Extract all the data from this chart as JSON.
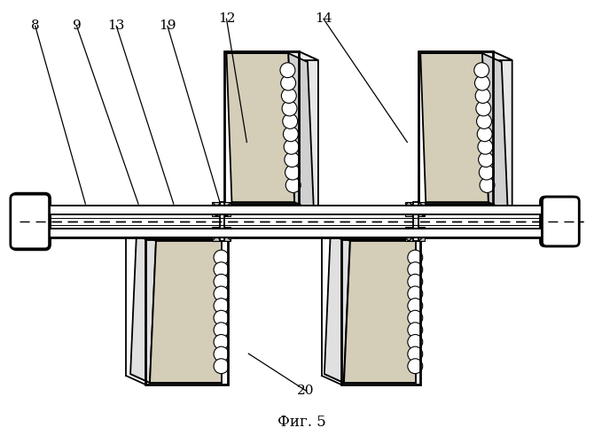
{
  "bg_color": "#ffffff",
  "line_color": "#000000",
  "fill_dotted": "#d4cdb8",
  "title": "Фиг. 5",
  "lw": 1.3,
  "lw2": 2.0
}
